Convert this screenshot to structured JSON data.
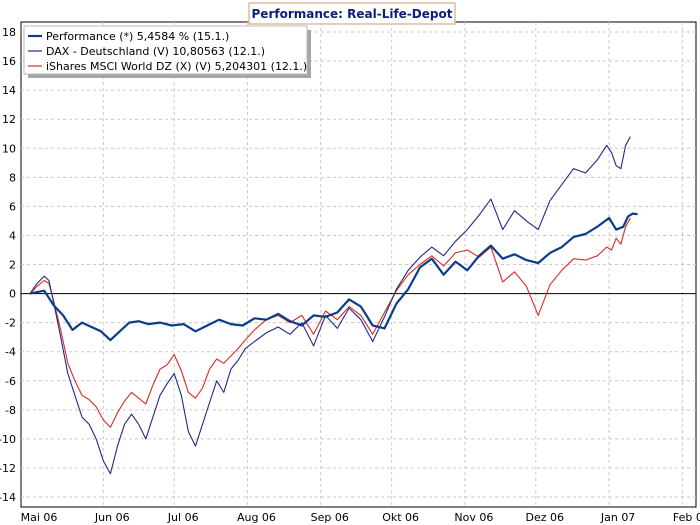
{
  "chart_data": {
    "type": "line",
    "title": "Performance: Real-Life-Depot",
    "xlabel": "",
    "ylabel": "",
    "ylim": [
      -14,
      18
    ],
    "y_ticks": [
      18,
      16,
      14,
      12,
      10,
      8,
      6,
      4,
      2,
      0,
      -2,
      -4,
      -6,
      -8,
      -10,
      -12,
      -14
    ],
    "x_range_days": [
      0,
      275
    ],
    "x_ticks": [
      {
        "label": "Mai 06",
        "day": 0
      },
      {
        "label": "Jun 06",
        "day": 31
      },
      {
        "label": "Jul 06",
        "day": 61
      },
      {
        "label": "Aug 06",
        "day": 92
      },
      {
        "label": "Sep 06",
        "day": 123
      },
      {
        "label": "Okt 06",
        "day": 153
      },
      {
        "label": "Nov 06",
        "day": 184
      },
      {
        "label": "Dez 06",
        "day": 214
      },
      {
        "label": "Jan 07",
        "day": 245
      },
      {
        "label": "Feb 07",
        "day": 276
      }
    ],
    "grid": true,
    "legend_position": "top-left",
    "series": [
      {
        "name": "Performance (*) 5,4584 % (15.1.)",
        "color": "#0d3c8c",
        "width": 2.2,
        "x": [
          0,
          3,
          6,
          10,
          14,
          18,
          22,
          26,
          30,
          34,
          38,
          42,
          46,
          50,
          55,
          60,
          65,
          70,
          75,
          80,
          85,
          90,
          95,
          100,
          105,
          110,
          115,
          120,
          125,
          130,
          135,
          140,
          145,
          150,
          155,
          160,
          165,
          170,
          175,
          180,
          185,
          190,
          195,
          200,
          205,
          210,
          215,
          220,
          225,
          230,
          235,
          240,
          245,
          248,
          251,
          253,
          255,
          257
        ],
        "values": [
          0.0,
          0.1,
          0.2,
          -0.8,
          -1.5,
          -2.5,
          -2.0,
          -2.3,
          -2.6,
          -3.2,
          -2.6,
          -2.0,
          -1.9,
          -2.1,
          -2.0,
          -2.2,
          -2.1,
          -2.6,
          -2.2,
          -1.8,
          -2.1,
          -2.2,
          -1.7,
          -1.8,
          -1.4,
          -1.9,
          -2.2,
          -1.5,
          -1.6,
          -1.3,
          -0.4,
          -0.9,
          -2.2,
          -2.4,
          -0.7,
          0.3,
          1.8,
          2.4,
          1.3,
          2.2,
          1.6,
          2.6,
          3.3,
          2.4,
          2.7,
          2.3,
          2.1,
          2.8,
          3.2,
          3.9,
          4.1,
          4.6,
          5.2,
          4.4,
          4.6,
          5.3,
          5.5,
          5.46
        ]
      },
      {
        "name": "DAX - Deutschland (V) 10,80563 (12.1.)",
        "color": "#1f2a88",
        "width": 1.1,
        "x": [
          0,
          3,
          6,
          8,
          10,
          13,
          16,
          19,
          22,
          25,
          28,
          31,
          34,
          37,
          40,
          43,
          46,
          49,
          52,
          55,
          58,
          61,
          64,
          67,
          70,
          73,
          76,
          79,
          82,
          85,
          88,
          91,
          95,
          100,
          105,
          110,
          115,
          120,
          125,
          130,
          135,
          140,
          145,
          150,
          155,
          160,
          165,
          170,
          175,
          180,
          185,
          190,
          195,
          200,
          205,
          210,
          215,
          220,
          225,
          230,
          235,
          240,
          244,
          246,
          248,
          250,
          252,
          254
        ],
        "values": [
          0.0,
          0.7,
          1.2,
          0.9,
          -0.6,
          -3.0,
          -5.5,
          -7.0,
          -8.5,
          -9.0,
          -10.0,
          -11.5,
          -12.4,
          -10.5,
          -9.0,
          -8.3,
          -9.0,
          -10.0,
          -8.5,
          -7.0,
          -6.2,
          -5.5,
          -7.0,
          -9.5,
          -10.5,
          -9.0,
          -7.5,
          -6.0,
          -6.8,
          -5.2,
          -4.6,
          -3.8,
          -3.3,
          -2.7,
          -2.3,
          -2.8,
          -2.0,
          -3.6,
          -1.5,
          -2.4,
          -1.0,
          -1.8,
          -3.3,
          -1.6,
          0.3,
          1.6,
          2.5,
          3.2,
          2.6,
          3.6,
          4.4,
          5.4,
          6.5,
          4.4,
          5.7,
          5.0,
          4.4,
          6.4,
          7.5,
          8.6,
          8.3,
          9.2,
          10.2,
          9.7,
          8.8,
          8.6,
          10.2,
          10.8
        ]
      },
      {
        "name": "iShares MSCI World DZ (X) (V) 5,204301 (12.1.)",
        "color": "#d92b26",
        "width": 1.1,
        "x": [
          0,
          3,
          6,
          8,
          10,
          13,
          16,
          19,
          22,
          25,
          28,
          31,
          34,
          37,
          40,
          43,
          46,
          49,
          52,
          55,
          58,
          61,
          64,
          67,
          70,
          73,
          76,
          79,
          82,
          85,
          88,
          91,
          95,
          100,
          105,
          110,
          115,
          120,
          125,
          130,
          135,
          140,
          145,
          150,
          155,
          160,
          165,
          170,
          175,
          180,
          185,
          190,
          195,
          200,
          205,
          210,
          215,
          220,
          225,
          230,
          235,
          240,
          244,
          246,
          248,
          250,
          252,
          254
        ],
        "values": [
          0.0,
          0.5,
          0.9,
          0.7,
          -0.5,
          -2.5,
          -4.8,
          -6.0,
          -7.0,
          -7.3,
          -7.8,
          -8.7,
          -9.2,
          -8.2,
          -7.4,
          -6.8,
          -7.2,
          -7.6,
          -6.3,
          -5.2,
          -4.9,
          -4.2,
          -5.3,
          -6.8,
          -7.2,
          -6.5,
          -5.2,
          -4.5,
          -4.8,
          -4.3,
          -3.8,
          -3.2,
          -2.5,
          -1.8,
          -1.5,
          -2.0,
          -1.5,
          -2.8,
          -1.2,
          -1.8,
          -0.9,
          -1.5,
          -2.8,
          -1.3,
          0.2,
          1.3,
          2.0,
          2.6,
          1.9,
          2.8,
          3.0,
          2.5,
          3.2,
          0.8,
          1.5,
          0.5,
          -1.5,
          0.6,
          1.6,
          2.4,
          2.3,
          2.6,
          3.2,
          3.0,
          3.8,
          3.4,
          4.6,
          5.2
        ]
      }
    ]
  }
}
